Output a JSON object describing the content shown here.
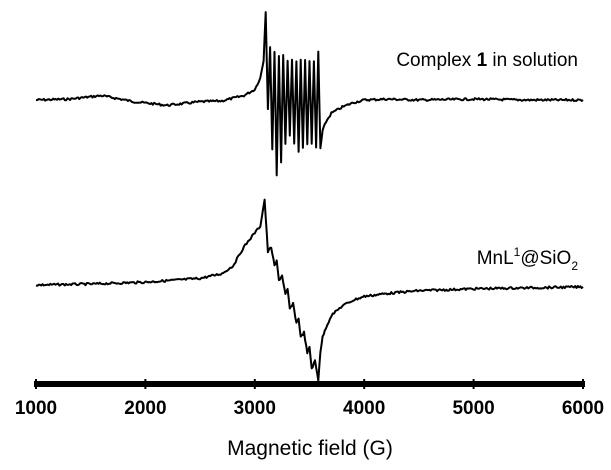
{
  "chart_data": {
    "type": "line",
    "xlabel": "Magnetic field (G)",
    "xlim": [
      1000,
      6000
    ],
    "xticks": [
      1000,
      2000,
      3000,
      4000,
      5000,
      6000
    ],
    "grid": false,
    "series": [
      {
        "name": "Complex 1 in solution",
        "name_parts": {
          "before": "Complex ",
          "bold": "1",
          "after": " in solution"
        },
        "color": "#000000",
        "x": [
          1000,
          1300,
          1600,
          1900,
          2200,
          2500,
          2700,
          2900,
          3000,
          3050,
          3080,
          3100,
          3120,
          3140,
          3160,
          3180,
          3200,
          3220,
          3240,
          3260,
          3280,
          3300,
          3320,
          3340,
          3360,
          3380,
          3400,
          3420,
          3440,
          3460,
          3480,
          3500,
          3520,
          3540,
          3560,
          3580,
          3600,
          3620,
          3650,
          3700,
          3800,
          3900,
          4000,
          4200,
          4500,
          5000,
          5500,
          6000
        ],
        "y": [
          0.0,
          0.01,
          0.05,
          -0.02,
          -0.06,
          -0.02,
          -0.01,
          0.05,
          0.12,
          0.25,
          0.45,
          1.0,
          -0.1,
          0.6,
          -0.55,
          0.55,
          -0.85,
          0.5,
          -0.7,
          0.5,
          -0.5,
          0.45,
          -0.4,
          0.45,
          -0.5,
          0.45,
          -0.6,
          0.45,
          -0.55,
          0.45,
          -0.5,
          0.45,
          -0.5,
          0.45,
          -0.55,
          0.55,
          -0.55,
          -0.35,
          -0.25,
          -0.15,
          -0.08,
          -0.03,
          0.0,
          0.01,
          0.0,
          0.01,
          0.0,
          0.0
        ]
      },
      {
        "name": "MnL1@SiO2",
        "name_parts": {
          "base": "MnL",
          "sup": "1",
          "mid": "@SiO",
          "sub": "2"
        },
        "color": "#000000",
        "x": [
          1000,
          1500,
          2000,
          2500,
          2700,
          2800,
          2900,
          3000,
          3050,
          3090,
          3120,
          3150,
          3180,
          3200,
          3220,
          3250,
          3280,
          3300,
          3320,
          3350,
          3380,
          3400,
          3420,
          3450,
          3480,
          3500,
          3520,
          3550,
          3580,
          3600,
          3620,
          3650,
          3700,
          3800,
          3900,
          4000,
          4200,
          4500,
          5000,
          5500,
          6000
        ],
        "y": [
          0.0,
          0.01,
          0.03,
          0.07,
          0.12,
          0.2,
          0.4,
          0.55,
          0.62,
          0.9,
          0.35,
          0.4,
          0.2,
          0.25,
          0.05,
          0.1,
          -0.1,
          -0.05,
          -0.25,
          -0.2,
          -0.4,
          -0.35,
          -0.55,
          -0.5,
          -0.72,
          -0.65,
          -0.88,
          -0.8,
          -1.0,
          -0.7,
          -0.55,
          -0.45,
          -0.32,
          -0.22,
          -0.16,
          -0.12,
          -0.09,
          -0.06,
          -0.04,
          -0.03,
          -0.02
        ]
      }
    ]
  }
}
